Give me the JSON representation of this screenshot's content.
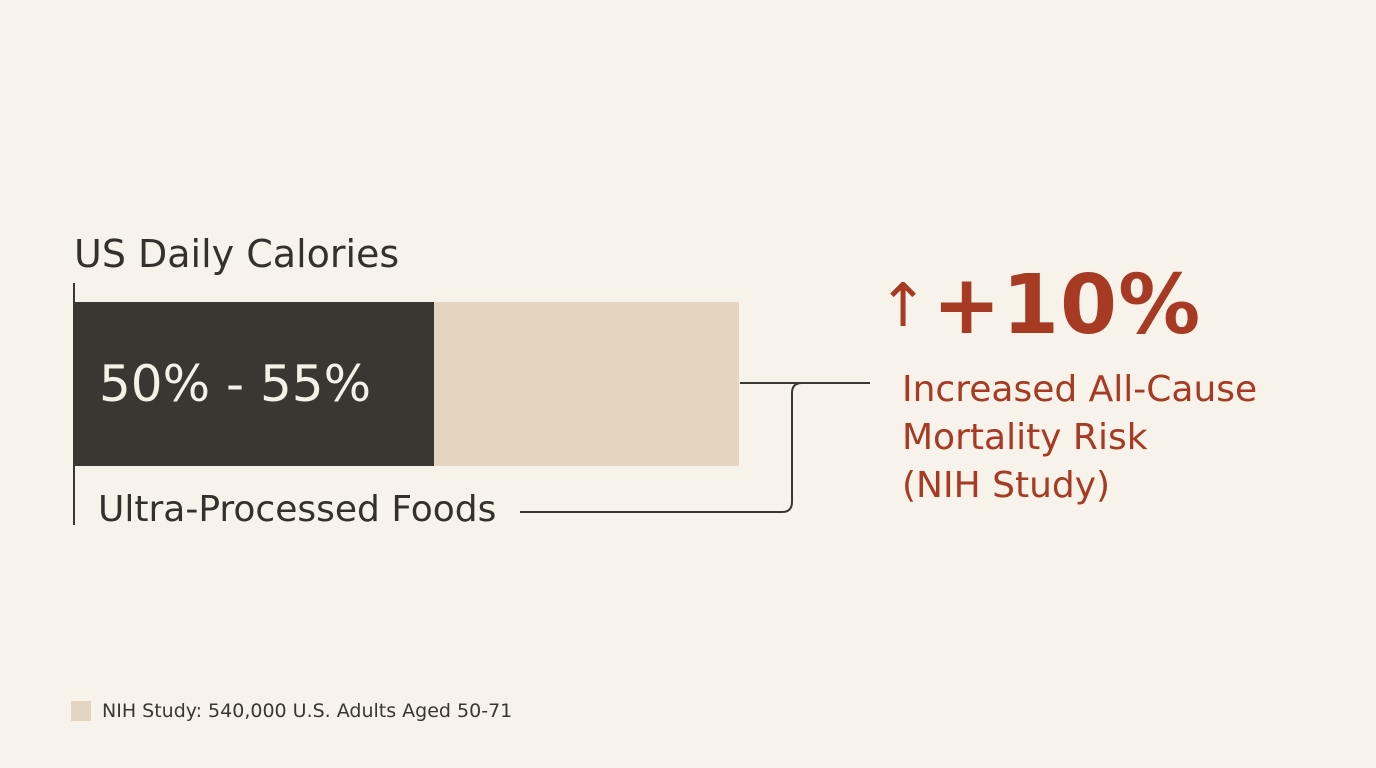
{
  "colors": {
    "background": "#f7f3ea",
    "filled_bar": "#3a3733",
    "remaining_bar": "#e3d5bf",
    "accent": "#a63a23",
    "text": "#34312d"
  },
  "chart_data": {
    "type": "bar",
    "orientation": "horizontal",
    "stacked": true,
    "title": "US Daily Calories",
    "categories": [
      "US Daily Calories"
    ],
    "series": [
      {
        "name": "Ultra-Processed Foods",
        "value_range": [
          50,
          55
        ],
        "value_label": "50% - 55%",
        "color": "#3a3733"
      },
      {
        "value": 45,
        "color": "#e3d5bf"
      }
    ],
    "xlim": [
      0,
      100
    ],
    "annotation": {
      "arrow": "↑",
      "value": "+10%",
      "lines": [
        "Increased All-Cause",
        "Mortality Risk",
        "(NIH Study)"
      ]
    },
    "legend": {
      "label": "NIH Study: 540,000 U.S. Adults Aged 50-71",
      "color": "#e3d5bf",
      "placement": "bottom-left"
    }
  }
}
